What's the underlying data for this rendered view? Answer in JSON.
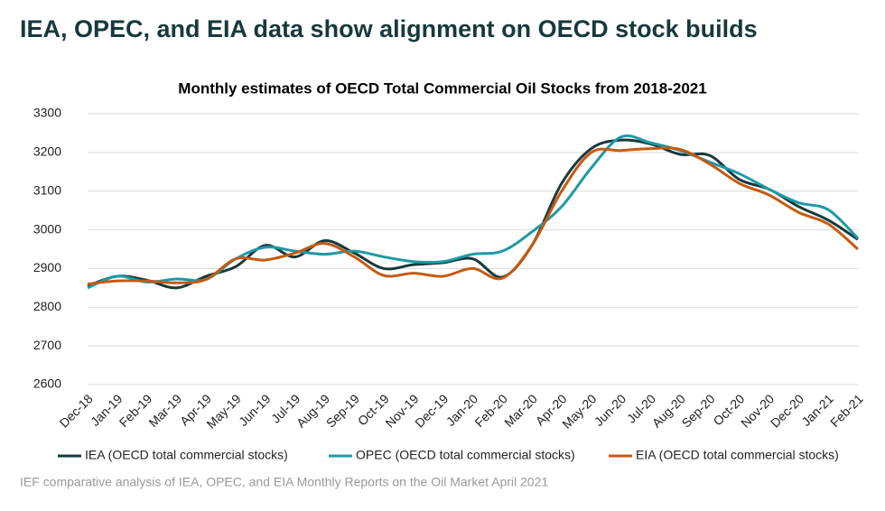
{
  "header": {
    "title": "IEA, OPEC, and EIA data show alignment on OECD stock builds"
  },
  "chart_data": {
    "type": "line",
    "title": "Monthly estimates of OECD Total Commercial Oil Stocks from 2018-2021",
    "categories": [
      "Dec-18",
      "Jan-19",
      "Feb-19",
      "Mar-19",
      "Apr-19",
      "May-19",
      "Jun-19",
      "Jul-19",
      "Aug-19",
      "Sep-19",
      "Oct-19",
      "Nov-19",
      "Dec-19",
      "Jan-20",
      "Feb-20",
      "Mar-20",
      "Apr-20",
      "May-20",
      "Jun-20",
      "Jul-20",
      "Aug-20",
      "Sep-20",
      "Oct-20",
      "Nov-20",
      "Dec-20",
      "Jan-21",
      "Feb-21"
    ],
    "series": [
      {
        "name": "IEA (OECD total commercial stocks)",
        "color": "#17393b",
        "values": [
          2855,
          2880,
          2870,
          2850,
          2880,
          2905,
          2960,
          2930,
          2972,
          2940,
          2900,
          2910,
          2915,
          2925,
          2878,
          2960,
          3120,
          3210,
          3232,
          3222,
          3195,
          3192,
          3130,
          3105,
          3060,
          3025,
          2975
        ]
      },
      {
        "name": "OPEC (OECD total commercial stocks)",
        "color": "#1f99a4",
        "values": [
          2850,
          2880,
          2865,
          2873,
          2872,
          2925,
          2955,
          2945,
          2937,
          2945,
          2930,
          2918,
          2918,
          2937,
          2945,
          2995,
          3060,
          3160,
          3240,
          3225,
          3205,
          3175,
          3145,
          3105,
          3070,
          3052,
          2978
        ]
      },
      {
        "name": "EIA (OECD total commercial stocks)",
        "color": "#c45a12",
        "values": [
          2860,
          2868,
          2868,
          2863,
          2872,
          2925,
          2922,
          2940,
          2965,
          2930,
          2882,
          2888,
          2880,
          2900,
          2875,
          2960,
          3100,
          3200,
          3205,
          3210,
          3208,
          3170,
          3120,
          3090,
          3045,
          3015,
          2950
        ]
      }
    ],
    "ylim": [
      2600,
      3300
    ],
    "yticks": [
      2600,
      2700,
      2800,
      2900,
      3000,
      3100,
      3200,
      3300
    ],
    "grid": true,
    "legend": "bottom",
    "source": "IEF comparative analysis of IEA, OPEC, and EIA Monthly Reports on the Oil Market April 2021"
  }
}
